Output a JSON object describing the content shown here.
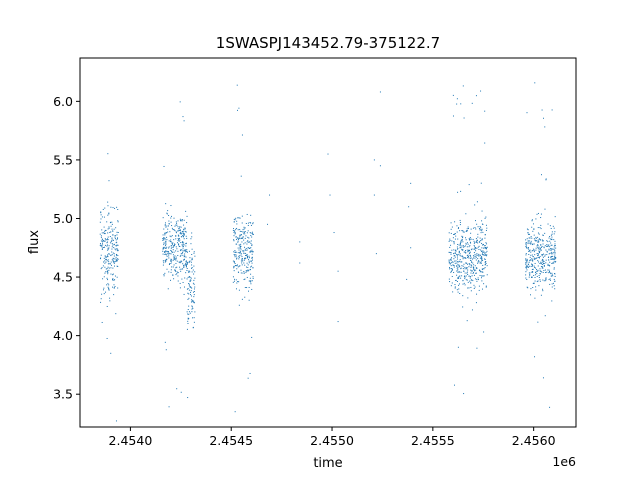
{
  "chart_data": {
    "type": "scatter",
    "title": "1SWASPJ143452.79-375122.7",
    "xlabel": "time",
    "ylabel": "flux",
    "x_offset_label": "1e6",
    "xlim": [
      2.45375,
      2.45621
    ],
    "ylim": [
      3.22,
      6.37
    ],
    "x_ticks": [
      2.454,
      2.4545,
      2.455,
      2.4555,
      2.456
    ],
    "x_tick_labels": [
      "2.4540",
      "2.4545",
      "2.4550",
      "2.4555",
      "2.4560"
    ],
    "y_ticks": [
      3.5,
      4.0,
      4.5,
      5.0,
      5.5,
      6.0
    ],
    "y_tick_labels": [
      "3.5",
      "4.0",
      "4.5",
      "5.0",
      "5.5",
      "6.0"
    ],
    "grid": false,
    "marker_color": "#1f77b4",
    "series": [
      {
        "clusters": [
          {
            "x_start": 2.45385,
            "x_end": 2.45394,
            "center": 4.72,
            "spread": 0.33
          },
          {
            "x_start": 2.45416,
            "x_end": 2.45428,
            "center": 4.75,
            "spread": 0.27
          },
          {
            "x_start": 2.45428,
            "x_end": 2.45432,
            "center": 4.45,
            "spread": 0.35
          },
          {
            "x_start": 2.45451,
            "x_end": 2.45461,
            "center": 4.72,
            "spread": 0.3
          },
          {
            "x_start": 2.45558,
            "x_end": 2.45577,
            "center": 4.68,
            "spread": 0.28
          },
          {
            "x_start": 2.45596,
            "x_end": 2.45611,
            "center": 4.68,
            "spread": 0.27
          }
        ],
        "sparse_points": [
          {
            "x": 2.45468,
            "y": 4.95
          },
          {
            "x": 2.45469,
            "y": 5.2
          },
          {
            "x": 2.45484,
            "y": 4.8
          },
          {
            "x": 2.45484,
            "y": 4.62
          },
          {
            "x": 2.45498,
            "y": 5.55
          },
          {
            "x": 2.45499,
            "y": 5.2
          },
          {
            "x": 2.45501,
            "y": 4.88
          },
          {
            "x": 2.45503,
            "y": 4.55
          },
          {
            "x": 2.45503,
            "y": 4.12
          },
          {
            "x": 2.45521,
            "y": 5.5
          },
          {
            "x": 2.45521,
            "y": 5.2
          },
          {
            "x": 2.45522,
            "y": 4.7
          },
          {
            "x": 2.45524,
            "y": 6.08
          },
          {
            "x": 2.45524,
            "y": 5.45
          },
          {
            "x": 2.45537,
            "y": 4.48
          },
          {
            "x": 2.45538,
            "y": 5.1
          },
          {
            "x": 2.45539,
            "y": 5.3
          },
          {
            "x": 2.45539,
            "y": 4.75
          }
        ]
      }
    ]
  }
}
